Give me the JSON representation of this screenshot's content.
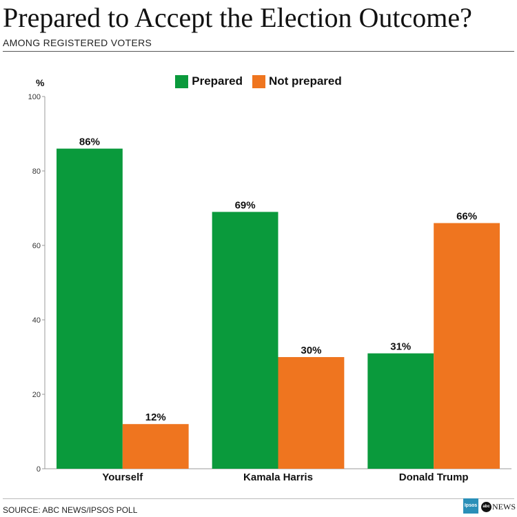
{
  "header": {
    "title": "Prepared to Accept the Election Outcome?",
    "subtitle": "AMONG REGISTERED VOTERS"
  },
  "legend": {
    "prepared_label": "Prepared",
    "not_prepared_label": "Not prepared"
  },
  "footer": {
    "source": "SOURCE: ABC NEWS/IPSOS POLL",
    "logo_ipsos": "Ipsos",
    "logo_abc_mark": "abc",
    "logo_abc_word": "NEWS"
  },
  "colors": {
    "prepared": "#0a9a3c",
    "not_prepared": "#ef751f",
    "axis": "#999999",
    "text": "#111111"
  },
  "chart_data": {
    "type": "bar",
    "title": "Prepared to Accept the Election Outcome?",
    "subtitle": "AMONG REGISTERED VOTERS",
    "ylabel": "%",
    "xlabel": "",
    "ylim": [
      0,
      100
    ],
    "yticks": [
      0,
      20,
      40,
      60,
      80,
      100
    ],
    "categories": [
      "Yourself",
      "Kamala Harris",
      "Donald Trump"
    ],
    "series": [
      {
        "name": "Prepared",
        "values": [
          86,
          69,
          31
        ],
        "labels": [
          "86%",
          "69%",
          "31%"
        ]
      },
      {
        "name": "Not prepared",
        "values": [
          12,
          30,
          66
        ],
        "labels": [
          "12%",
          "30%",
          "66%"
        ]
      }
    ],
    "legend_position": "top-center",
    "grid": false
  }
}
